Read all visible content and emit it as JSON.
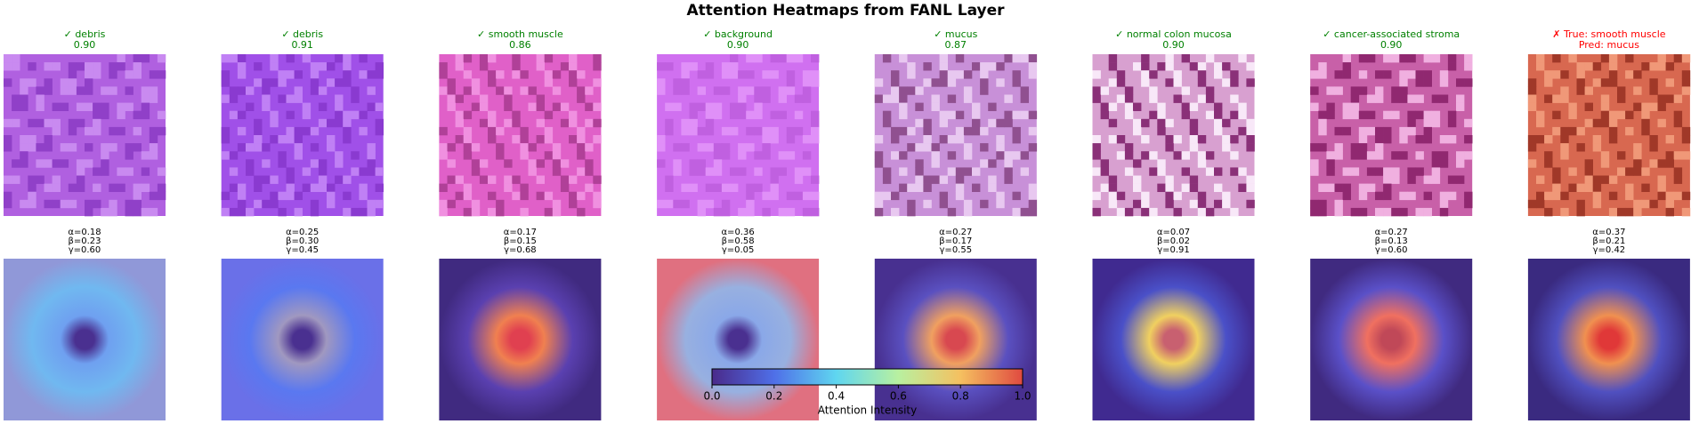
{
  "title": "Attention Heatmaps from FANL Layer",
  "panels": [
    {
      "lines": [
        "✓ debris",
        "0.90"
      ],
      "color": "#008000",
      "params": [
        "α=0.18",
        "β=0.23",
        "γ=0.60"
      ]
    },
    {
      "lines": [
        "✓ debris",
        "0.91"
      ],
      "color": "#008000",
      "params": [
        "α=0.25",
        "β=0.30",
        "γ=0.45"
      ]
    },
    {
      "lines": [
        "✓ smooth muscle",
        "0.86"
      ],
      "color": "#008000",
      "params": [
        "α=0.17",
        "β=0.15",
        "γ=0.68"
      ]
    },
    {
      "lines": [
        "✓ background",
        "0.90"
      ],
      "color": "#008000",
      "params": [
        "α=0.36",
        "β=0.58",
        "γ=0.05"
      ]
    },
    {
      "lines": [
        "✓ mucus",
        "0.87"
      ],
      "color": "#008000",
      "params": [
        "α=0.27",
        "β=0.17",
        "γ=0.55"
      ]
    },
    {
      "lines": [
        "✓ normal colon mucosa",
        "0.90"
      ],
      "color": "#008000",
      "params": [
        "α=0.07",
        "β=0.02",
        "γ=0.91"
      ]
    },
    {
      "lines": [
        "✓ cancer-associated stroma",
        "0.90"
      ],
      "color": "#008000",
      "params": [
        "α=0.27",
        "β=0.13",
        "γ=0.60"
      ]
    },
    {
      "lines": [
        "✗ True: smooth muscle",
        "Pred: mucus"
      ],
      "color": "#ff0000",
      "params": [
        "α=0.37",
        "β=0.21",
        "γ=0.42"
      ]
    }
  ],
  "colorbar": {
    "label": "Attention Intensity",
    "lim": [
      0,
      1
    ],
    "ticks": [
      {
        "value": 0,
        "label": "0.0"
      },
      {
        "value": 0.2,
        "label": "0.2"
      },
      {
        "value": 0.4,
        "label": "0.4"
      },
      {
        "value": 0.6,
        "label": "0.6"
      },
      {
        "value": 0.8,
        "label": "0.8"
      },
      {
        "value": 1,
        "label": "1.0"
      }
    ]
  }
}
